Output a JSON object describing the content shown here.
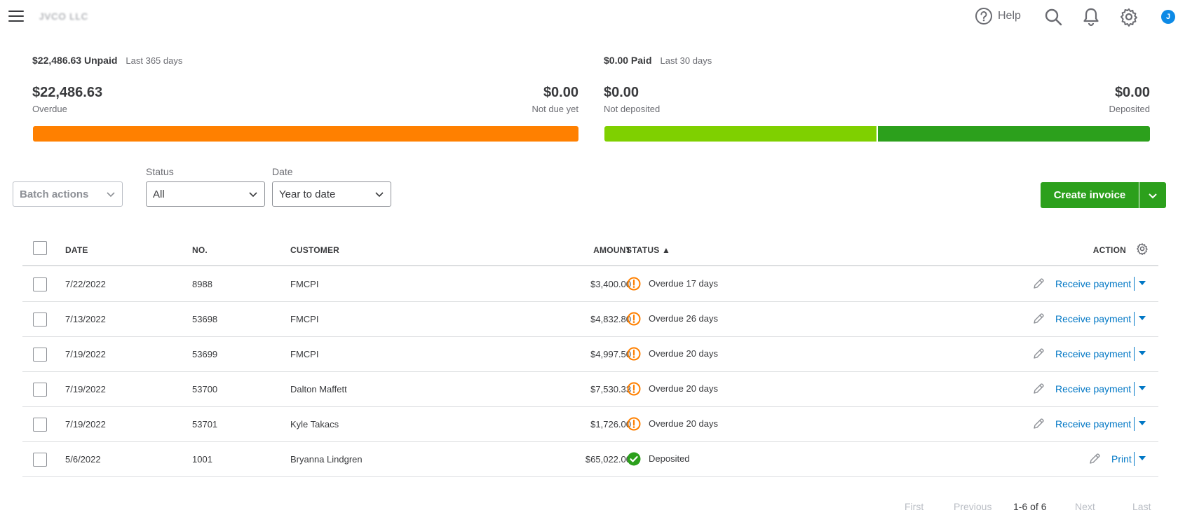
{
  "topbar": {
    "company_name": "JVCO LLC",
    "help_label": "Help",
    "avatar_initial": "J"
  },
  "unpaid": {
    "amount_label": "$22,486.63 Unpaid",
    "period": "Last 365 days",
    "overdue_value": "$22,486.63",
    "overdue_label": "Overdue",
    "not_due_value": "$0.00",
    "not_due_label": "Not due yet",
    "overdue_color": "#ff8000"
  },
  "paid": {
    "amount_label": "$0.00 Paid",
    "period": "Last 30 days",
    "not_deposited_value": "$0.00",
    "not_deposited_label": "Not deposited",
    "deposited_value": "$0.00",
    "deposited_label": "Deposited",
    "not_deposited_color": "#7fd000",
    "deposited_color": "#2ca01c"
  },
  "filters": {
    "batch_label": "Batch actions",
    "status_label": "Status",
    "status_value": "All",
    "date_label": "Date",
    "date_value": "Year to date"
  },
  "create_invoice_label": "Create invoice",
  "table": {
    "headers": {
      "date": "DATE",
      "no": "NO.",
      "customer": "CUSTOMER",
      "amount": "AMOUNT",
      "status": "STATUS ▲",
      "action": "ACTION"
    },
    "rows": [
      {
        "date": "7/22/2022",
        "no": "8988",
        "customer": "FMCPI",
        "amount": "$3,400.00",
        "status": "Overdue 17 days",
        "status_icon": "overdue-icon",
        "action": "Receive payment"
      },
      {
        "date": "7/13/2022",
        "no": "53698",
        "customer": "FMCPI",
        "amount": "$4,832.80",
        "status": "Overdue 26 days",
        "status_icon": "overdue-icon",
        "action": "Receive payment"
      },
      {
        "date": "7/19/2022",
        "no": "53699",
        "customer": "FMCPI",
        "amount": "$4,997.50",
        "status": "Overdue 20 days",
        "status_icon": "overdue-icon",
        "action": "Receive payment"
      },
      {
        "date": "7/19/2022",
        "no": "53700",
        "customer": "Dalton Maffett",
        "amount": "$7,530.33",
        "status": "Overdue 20 days",
        "status_icon": "overdue-icon",
        "action": "Receive payment"
      },
      {
        "date": "7/19/2022",
        "no": "53701",
        "customer": "Kyle Takacs",
        "amount": "$1,726.00",
        "status": "Overdue 20 days",
        "status_icon": "overdue-icon",
        "action": "Receive payment"
      },
      {
        "date": "5/6/2022",
        "no": "1001",
        "customer": "Bryanna Lindgren",
        "amount": "$65,022.00",
        "status": "Deposited",
        "status_icon": "check-circle-icon",
        "action": "Print"
      }
    ]
  },
  "pagination": {
    "first": "First",
    "previous": "Previous",
    "count": "1-6 of 6",
    "next": "Next",
    "last": "Last"
  }
}
